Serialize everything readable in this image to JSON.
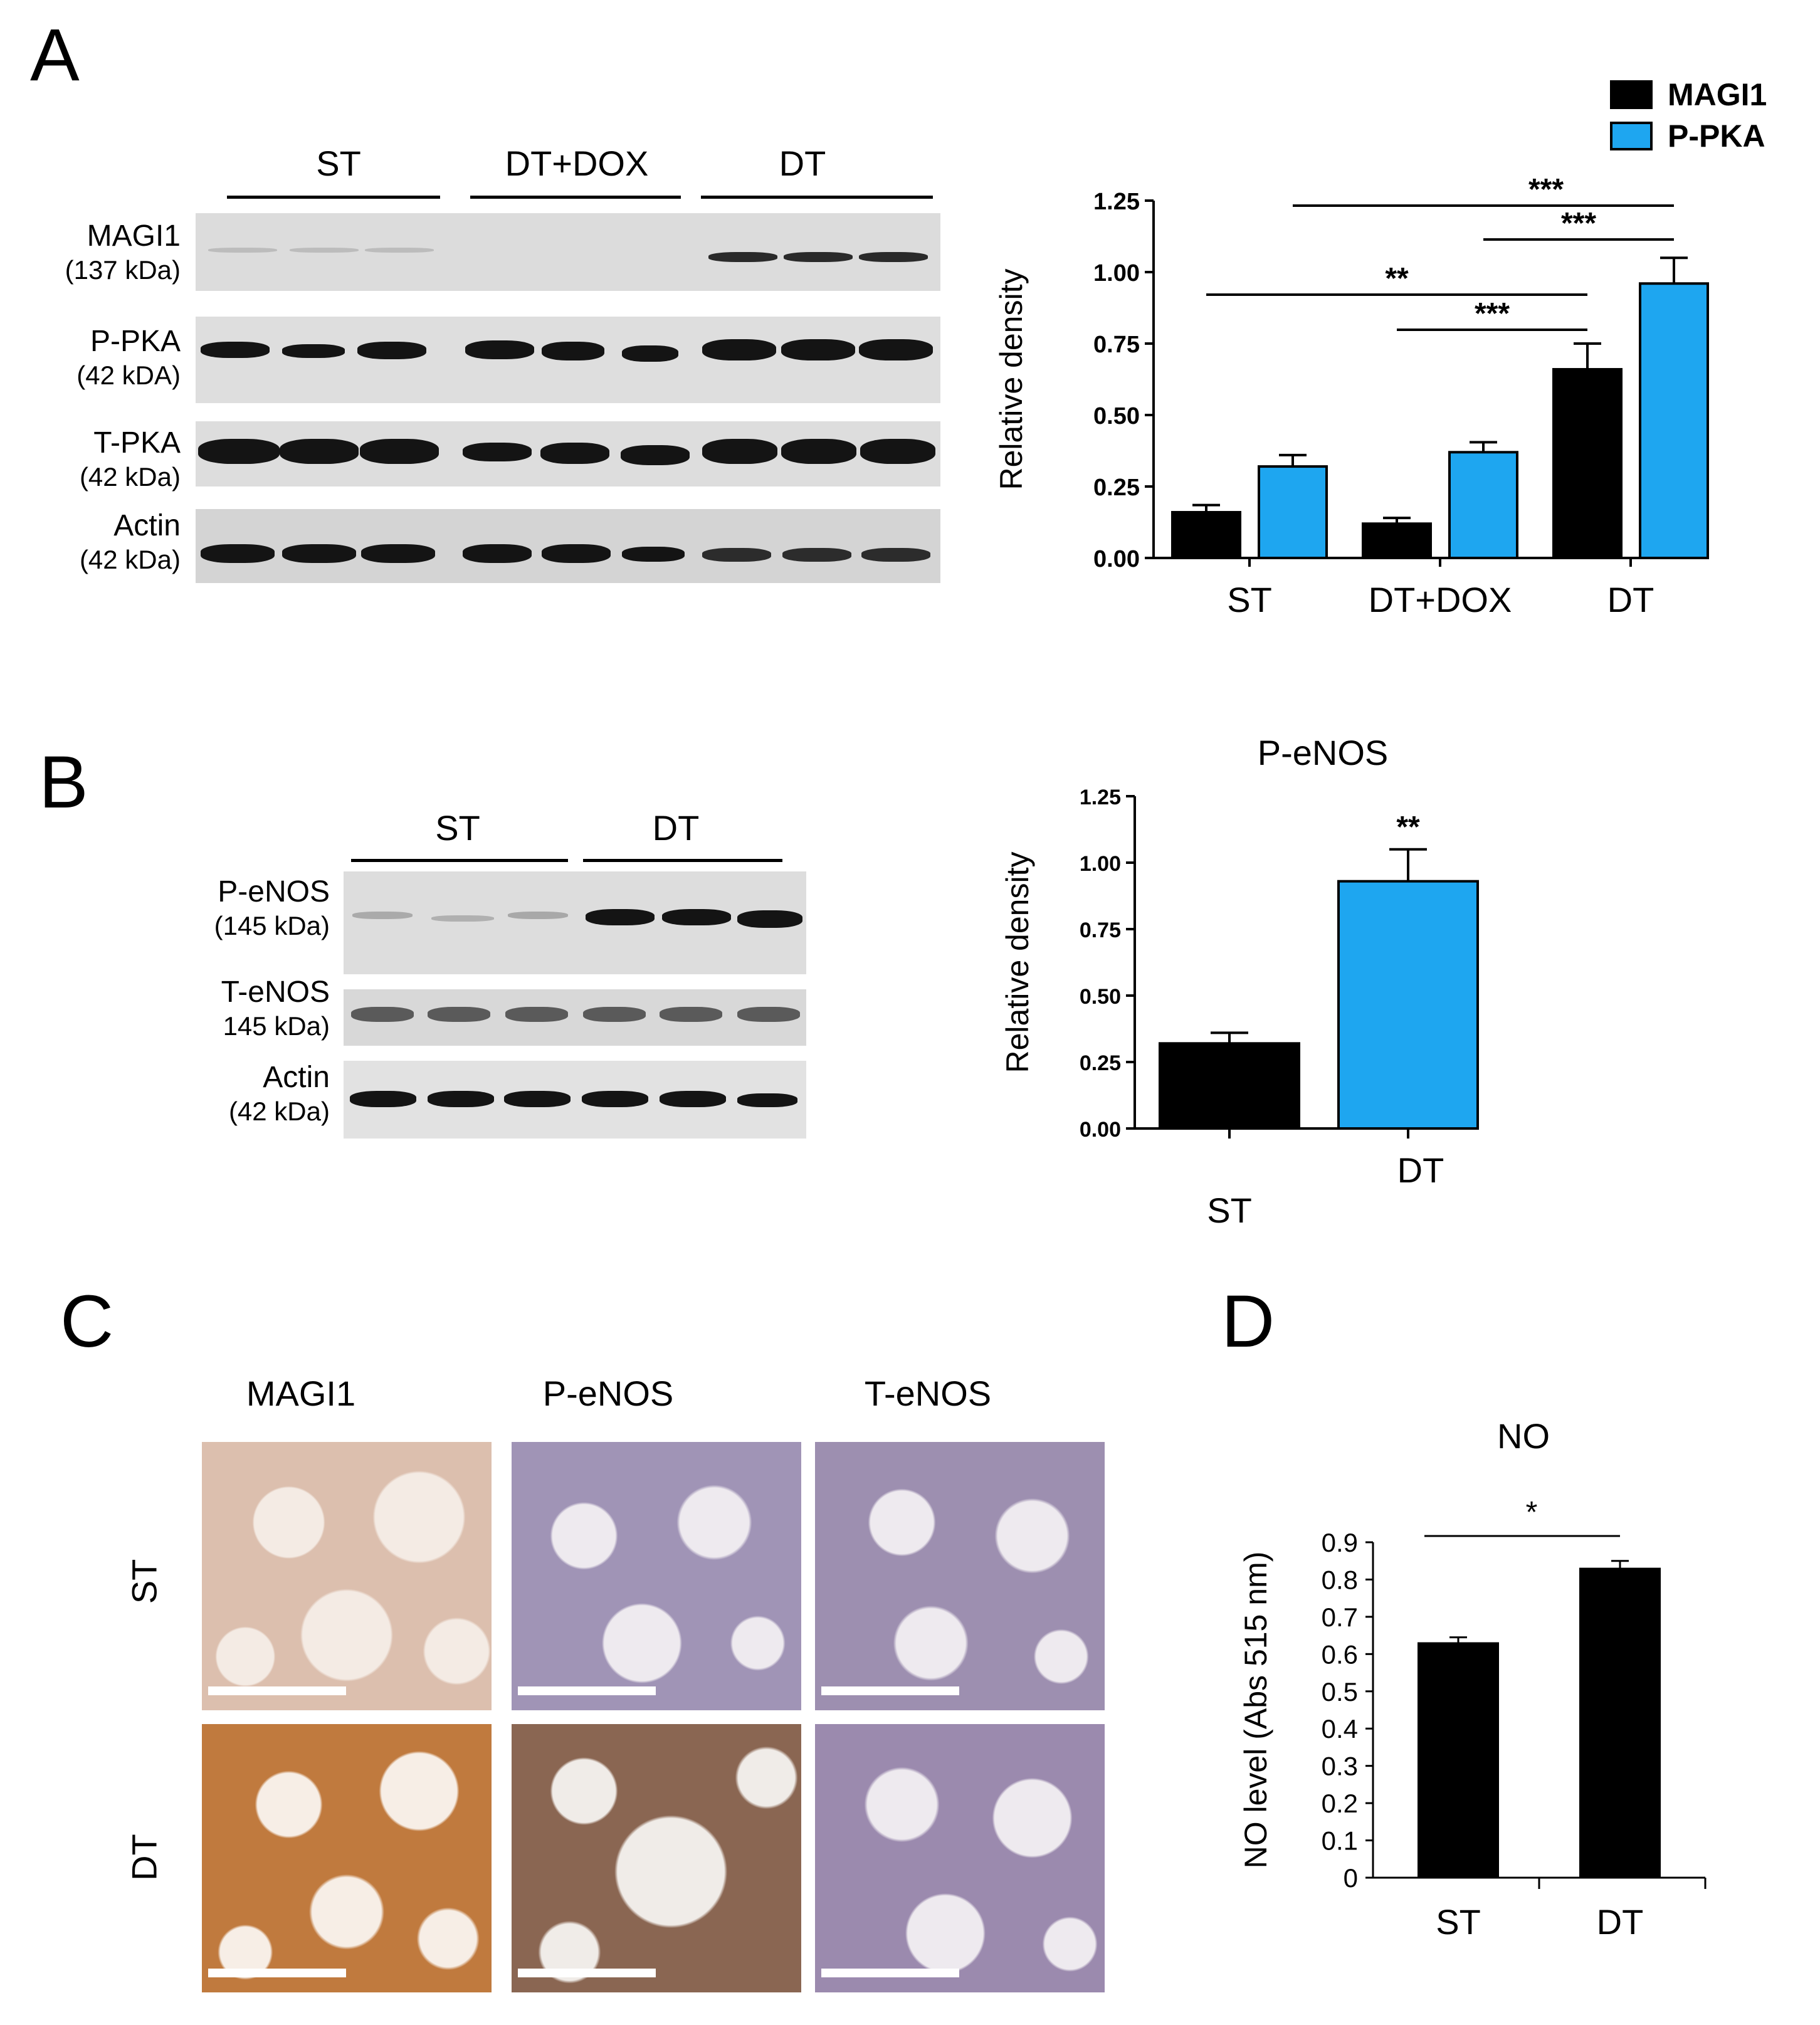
{
  "panels": {
    "A": {
      "letter": "A",
      "blot": {
        "groups": [
          "ST",
          "DT+DOX",
          "DT"
        ],
        "rows": [
          {
            "name": "MAGI1",
            "mw": "(137 kDa)"
          },
          {
            "name": "P-PKA",
            "mw": "(42 kDA)"
          },
          {
            "name": "T-PKA",
            "mw": "(42 kDa)"
          },
          {
            "name": "Actin",
            "mw": "(42 kDa)"
          }
        ]
      }
    },
    "B": {
      "letter": "B",
      "blot": {
        "groups": [
          "ST",
          "DT"
        ],
        "rows": [
          {
            "name": "P-eNOS",
            "mw": "(145 kDa)"
          },
          {
            "name": "T-eNOS",
            "mw": "145 kDa)"
          },
          {
            "name": "Actin",
            "mw": "(42 kDa)"
          }
        ]
      }
    },
    "C": {
      "letter": "C",
      "columns": [
        "MAGI1",
        "P-eNOS",
        "T-eNOS"
      ],
      "rows": [
        "ST",
        "DT"
      ]
    },
    "D": {
      "letter": "D"
    }
  },
  "colors": {
    "magi1": "#000000",
    "ppka": "#1ea6f0",
    "stain_brown": "#b8784a",
    "stain_purple": "#7a6a98"
  },
  "chart_data": [
    {
      "panel": "A",
      "type": "bar",
      "title": "",
      "xlabel": "",
      "ylabel": "Relative density",
      "ylim": [
        0,
        1.25
      ],
      "yticks": [
        "0.00",
        "0.25",
        "0.50",
        "0.75",
        "1.00",
        "1.25"
      ],
      "categories": [
        "ST",
        "DT+DOX",
        "DT"
      ],
      "series": [
        {
          "name": "MAGI1",
          "color": "#000000",
          "values": [
            0.16,
            0.12,
            0.66
          ],
          "errors": [
            0.025,
            0.02,
            0.09
          ]
        },
        {
          "name": "P-PKA",
          "color": "#1ea6f0",
          "values": [
            0.32,
            0.37,
            0.96
          ],
          "errors": [
            0.04,
            0.035,
            0.09
          ]
        }
      ],
      "legend": "top-right",
      "significance": [
        {
          "from": "ST P-PKA",
          "to": "DT P-PKA",
          "label": "***"
        },
        {
          "from": "DT+DOX P-PKA",
          "to": "DT P-PKA",
          "label": "***"
        },
        {
          "from": "ST MAGI1",
          "to": "DT MAGI1",
          "label": "**"
        },
        {
          "from": "DT+DOX MAGI1",
          "to": "DT MAGI1",
          "label": "***"
        }
      ]
    },
    {
      "panel": "B",
      "type": "bar",
      "title": "P-eNOS",
      "xlabel": "",
      "ylabel": "Relative density",
      "ylim": [
        0,
        1.25
      ],
      "yticks": [
        "0.00",
        "0.25",
        "0.50",
        "0.75",
        "1.00",
        "1.25"
      ],
      "categories": [
        "ST",
        "DT"
      ],
      "values": [
        0.32,
        0.93
      ],
      "errors": [
        0.04,
        0.12
      ],
      "colors": [
        "#000000",
        "#1ea6f0"
      ],
      "significance": [
        {
          "on": "DT",
          "label": "**"
        }
      ]
    },
    {
      "panel": "D",
      "type": "bar",
      "title": "NO",
      "xlabel": "",
      "ylabel": "NO level (Abs 515 nm)",
      "ylim": [
        0,
        0.9
      ],
      "yticks": [
        "0",
        "0.1",
        "0.2",
        "0.3",
        "0.4",
        "0.5",
        "0.6",
        "0.7",
        "0.8",
        "0.9"
      ],
      "categories": [
        "ST",
        "DT"
      ],
      "values": [
        0.63,
        0.83
      ],
      "errors": [
        0.015,
        0.02
      ],
      "colors": [
        "#000000",
        "#000000"
      ],
      "significance": [
        {
          "from": "ST",
          "to": "DT",
          "label": "*"
        }
      ]
    }
  ]
}
